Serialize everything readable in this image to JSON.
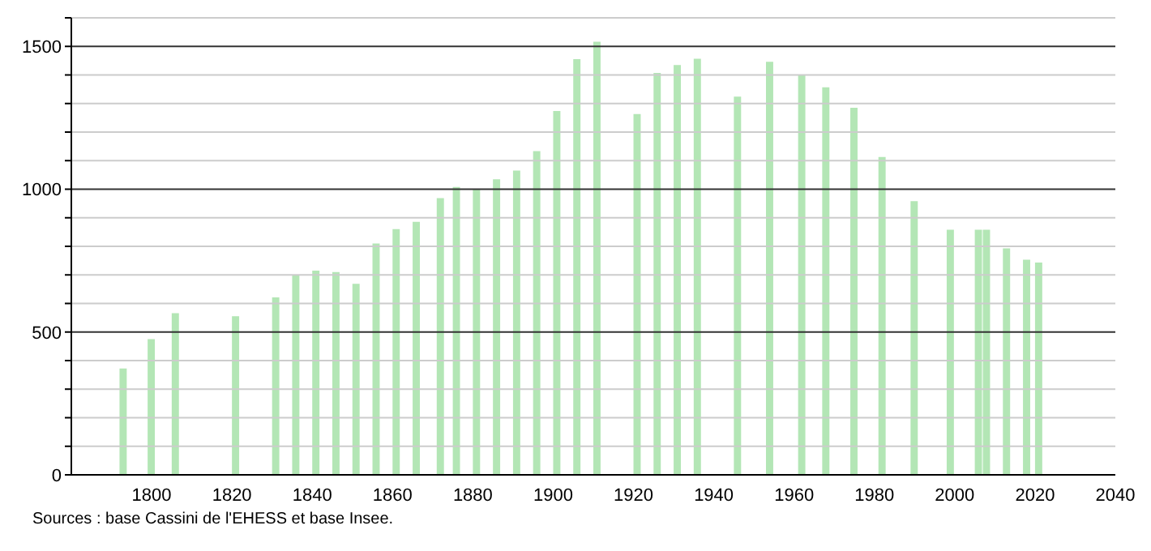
{
  "chart_data": {
    "type": "bar",
    "x": [
      1793,
      1800,
      1806,
      1821,
      1831,
      1836,
      1841,
      1846,
      1851,
      1856,
      1861,
      1866,
      1872,
      1876,
      1881,
      1886,
      1891,
      1896,
      1901,
      1906,
      1911,
      1921,
      1926,
      1931,
      1936,
      1946,
      1954,
      1962,
      1968,
      1975,
      1982,
      1990,
      1999,
      2006,
      2008,
      2013,
      2018,
      2021
    ],
    "values": [
      372,
      475,
      566,
      555,
      621,
      699,
      715,
      710,
      669,
      810,
      860,
      886,
      969,
      1008,
      1000,
      1035,
      1065,
      1133,
      1274,
      1455,
      1516,
      1263,
      1407,
      1435,
      1457,
      1324,
      1446,
      1399,
      1357,
      1285,
      1113,
      958,
      858,
      858,
      858,
      793,
      753,
      743
    ],
    "color": "#b3e6b5",
    "xlim": [
      1780,
      2040
    ],
    "xticks": [
      1800,
      1820,
      1840,
      1860,
      1880,
      1900,
      1920,
      1940,
      1960,
      1980,
      2000,
      2020,
      2040
    ],
    "ylim": [
      0,
      1600
    ],
    "yticks": [
      0,
      {
        "value": 100,
        "label": null
      },
      {
        "value": 200,
        "label": null
      },
      {
        "value": 300,
        "label": null
      },
      {
        "value": 400,
        "label": null
      },
      500,
      {
        "value": 600,
        "label": null
      },
      {
        "value": 700,
        "label": null
      },
      {
        "value": 800,
        "label": null
      },
      {
        "value": 900,
        "label": null
      },
      1000,
      {
        "value": 1100,
        "label": null
      },
      {
        "value": 1200,
        "label": null
      },
      {
        "value": 1300,
        "label": null
      },
      {
        "value": 1400,
        "label": null
      },
      1500,
      {
        "value": 1600,
        "label": null
      }
    ],
    "grid": "y",
    "annotations": [
      "Sources : base Cassini de l'EHESS et base Insee."
    ]
  }
}
